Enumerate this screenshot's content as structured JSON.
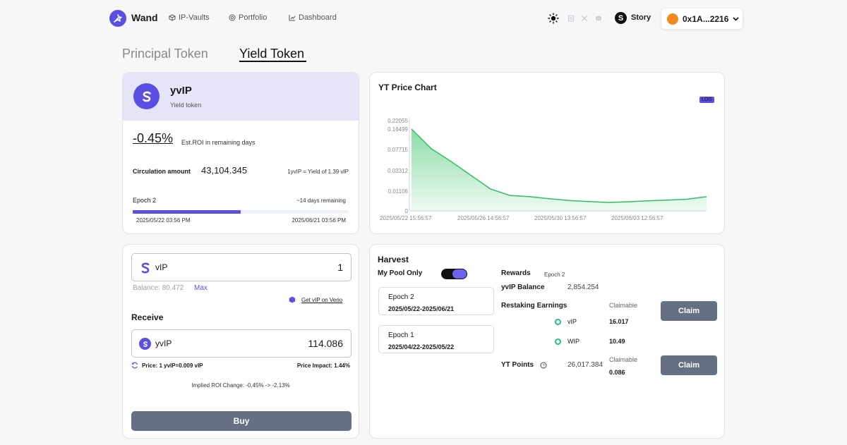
{
  "header": {
    "logo": "Wand",
    "nav": [
      {
        "label": "IP-Vaults",
        "icon": "cube-icon"
      },
      {
        "label": "Portfolio",
        "icon": "coin-icon"
      },
      {
        "label": "Dashboard",
        "icon": "chart-icon"
      }
    ],
    "network": "Story",
    "wallet": "0x1A...2216"
  },
  "tabs": {
    "principal": "Principal Token",
    "yield": "Yield Token",
    "active": "yield"
  },
  "token": {
    "name": "yvIP",
    "subtitle": "Yield token",
    "roi": "-0.45%",
    "roi_label": "Est.ROI in remaining days",
    "circulation_label": "Circulation amount",
    "circulation_value": "43,104.345",
    "conversion": "1yvIP = Yield of 1.39 vIP",
    "epoch_label": "Epoch 2",
    "remaining": "~14 days remaining",
    "progress": 0.5,
    "start_date": "2025/05/22 03:56 PM",
    "end_date": "2025/06/21 03:56 PM"
  },
  "chart": {
    "title": "YT Price Chart",
    "scale_badge": "LOG",
    "accent": "#2fbf5f"
  },
  "chart_data": {
    "type": "area",
    "title": "YT Price Chart",
    "yscale": "log",
    "y_ticks": [
      "0.22055",
      "0.16499",
      "0.07715",
      "0.03312",
      "0.01106",
      "0"
    ],
    "x_ticks": [
      "2025/05/22 15:56:57",
      "2025/05/26 14:56:57",
      "2025/05/30 13:56:57",
      "2025/06/03 12:56:57"
    ],
    "x": [
      "05/22",
      "05/23",
      "05/24",
      "05/25",
      "05/26",
      "05/27",
      "05/28",
      "05/29",
      "05/30",
      "05/31",
      "06/01",
      "06/02",
      "06/03",
      "06/04",
      "06/05",
      "06/06"
    ],
    "values": [
      0.165,
      0.07,
      0.04,
      0.022,
      0.012,
      0.009,
      0.0085,
      0.0078,
      0.0072,
      0.0069,
      0.0066,
      0.0068,
      0.0071,
      0.0073,
      0.0076,
      0.0085
    ]
  },
  "swap": {
    "pay_token": "vIP",
    "pay_amount": "1",
    "balance": "Balance: 80.472",
    "max": "Max",
    "get_link": "Get vIP on Verio",
    "receive_label": "Receive",
    "receive_token": "yvIP",
    "receive_amount": "114.086",
    "price": "Price: 1 yvIP=0.009 vIP",
    "impact": "Price Impact: 1.44%",
    "roi_change": "Implied ROI Change: -0.45% -> -2.13%",
    "buy": "Buy"
  },
  "harvest": {
    "title": "Harvest",
    "my_pool": "My Pool Only",
    "my_pool_on": true,
    "epochs": [
      {
        "name": "Epoch 2",
        "range": "2025/05/22-2025/06/21"
      },
      {
        "name": "Epoch 1",
        "range": "2025/04/22-2025/05/22"
      }
    ],
    "rewards_label": "Rewards",
    "rewards_epoch": "Epoch 2",
    "balance_label": "yvIP Balance",
    "balance_value": "2,854.254",
    "restaking_label": "Restaking Earnings",
    "claimable": "Claimable",
    "vip_label": "vIP",
    "vip_value": "16.017",
    "wip_label": "WIP",
    "wip_value": "10.49",
    "points_label": "YT Points",
    "points_value": "26,017.384",
    "points_claimable": "0.086",
    "claim": "Claim"
  }
}
